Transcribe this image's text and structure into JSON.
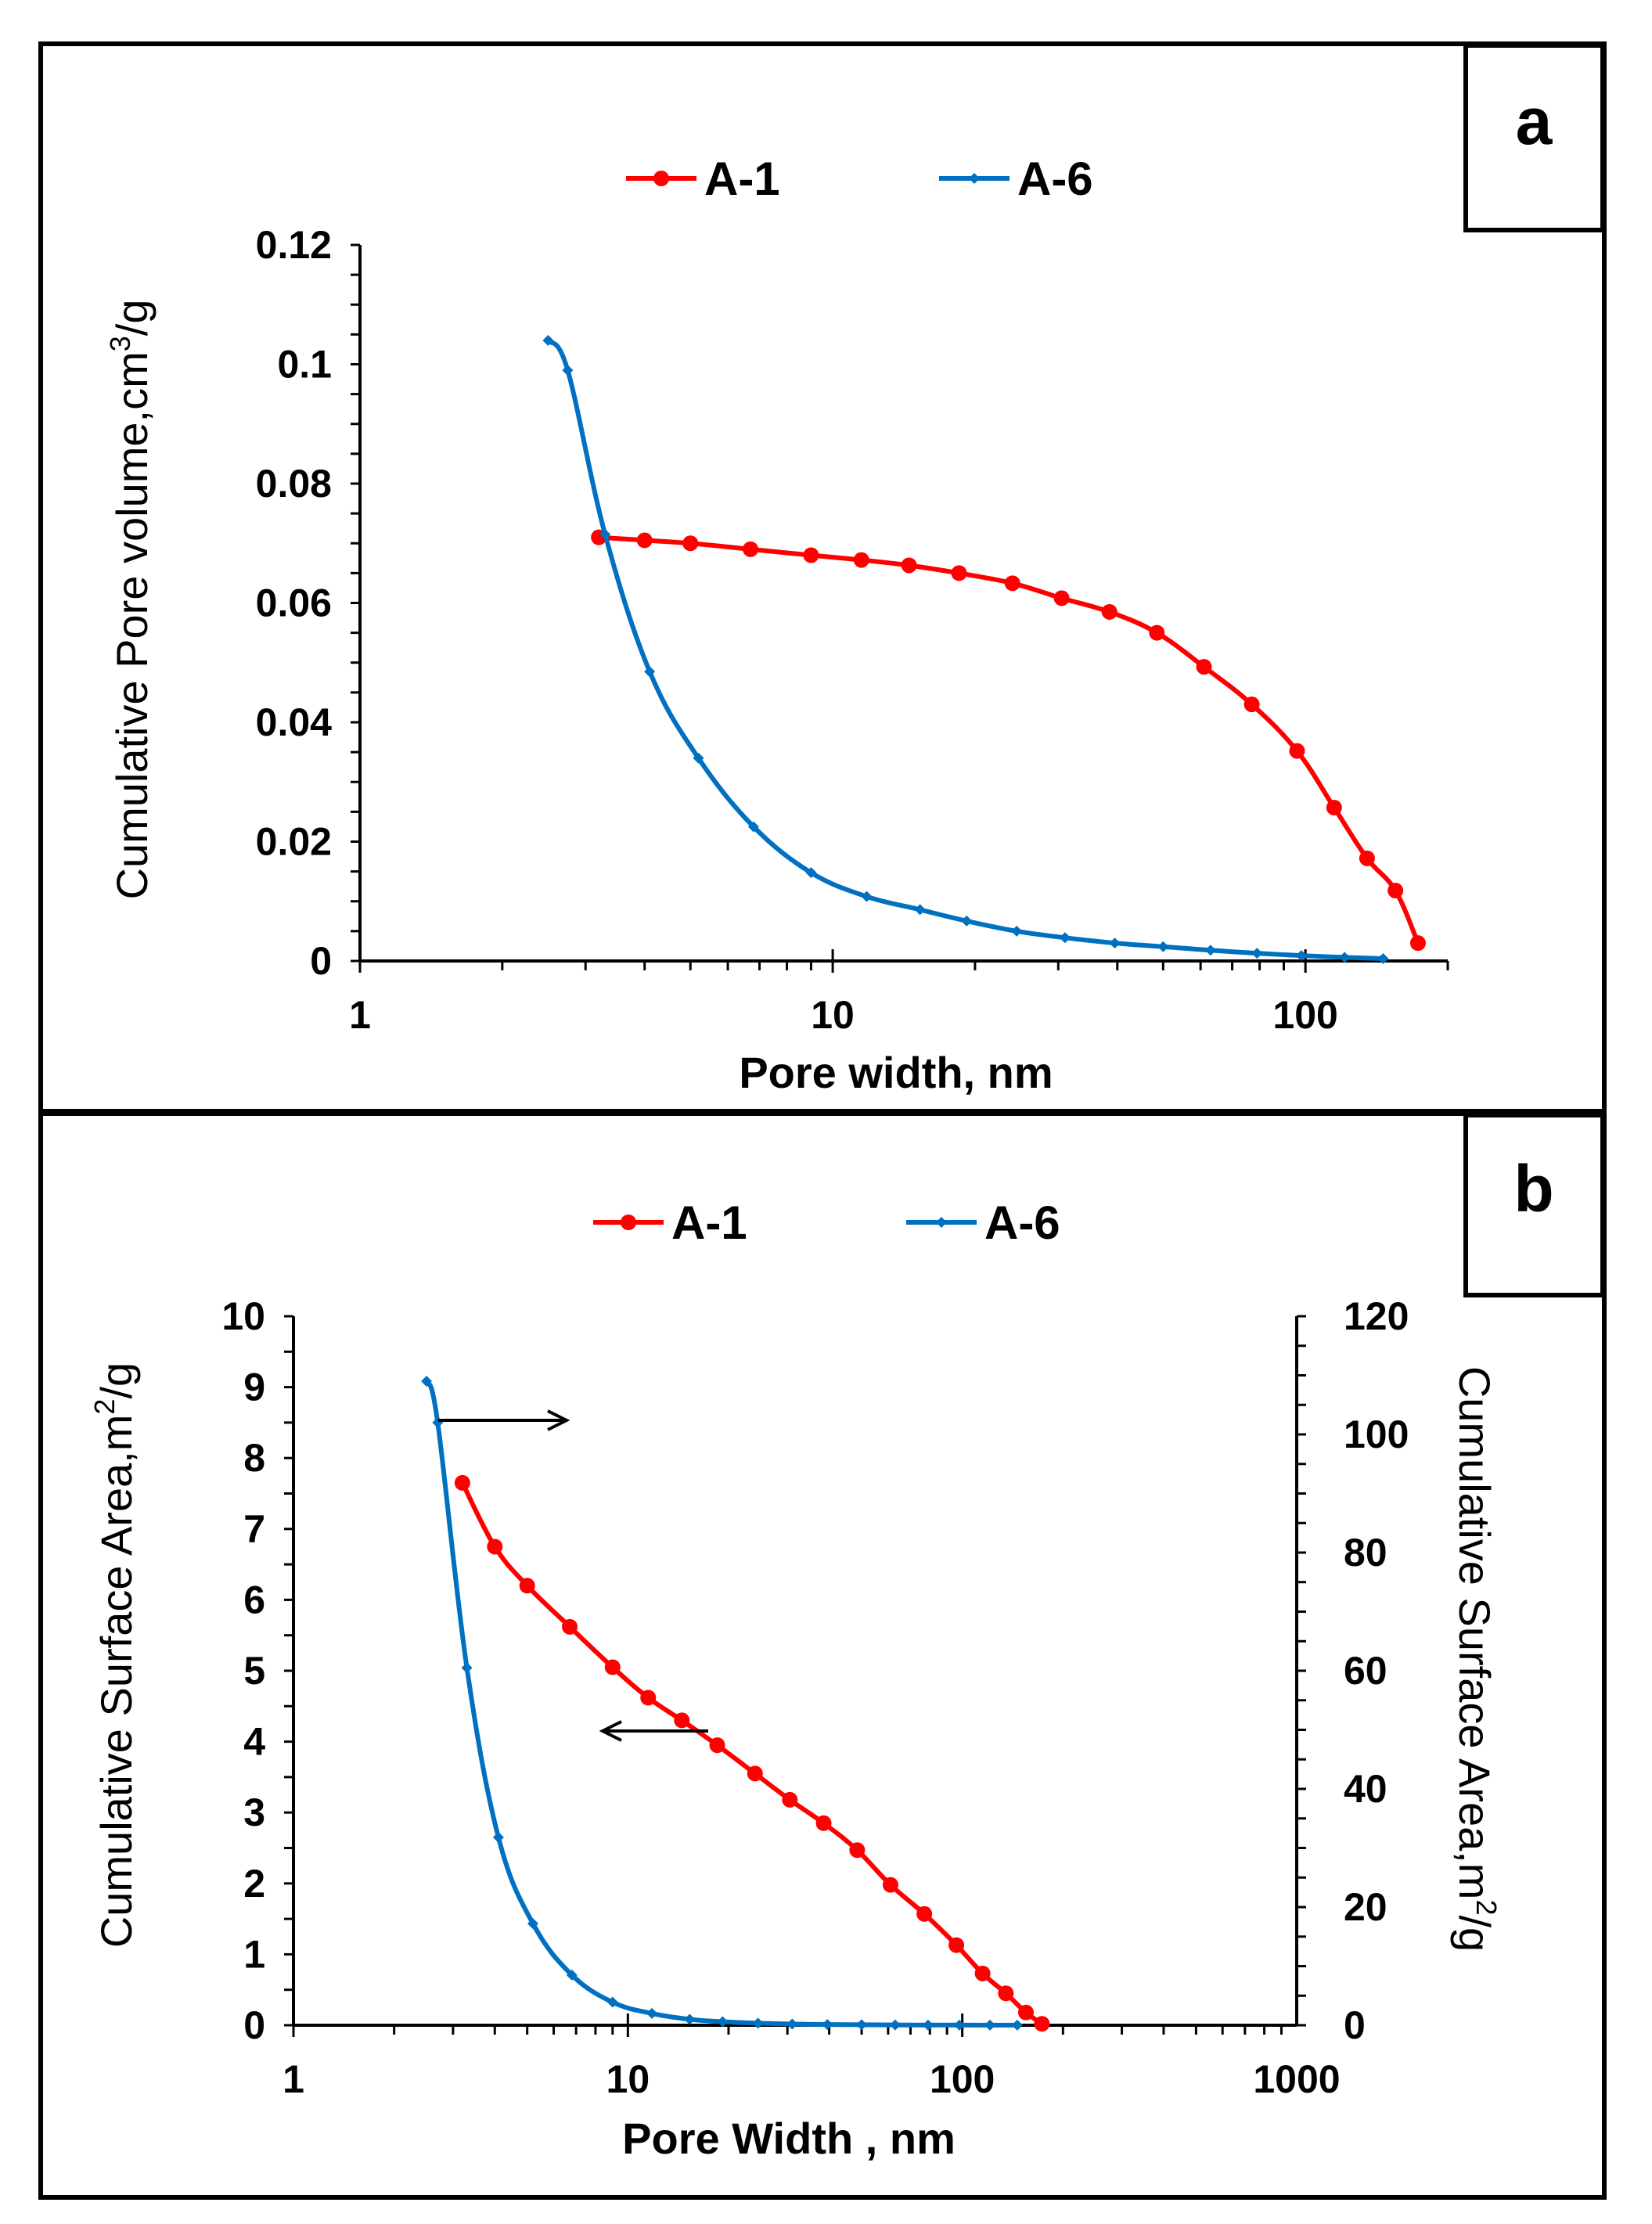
{
  "chart_data": [
    {
      "type": "line",
      "panel_label": "a",
      "xscale": "log",
      "xlim": [
        1,
        200
      ],
      "ylim": [
        0,
        0.12
      ],
      "xticks": [
        "1",
        "10",
        "100"
      ],
      "yticks": [
        "0",
        "0.02",
        "0.04",
        "0.06",
        "0.08",
        "0.1",
        "0.12"
      ],
      "xlabel": "Pore width, nm",
      "ylabel": "Cumulative Pore  volume,cm",
      "ylabel_sup": "3",
      "ylabel_tail": "/g",
      "legend_position": "top-center",
      "series": [
        {
          "name": "A-1",
          "color": "#ff0000",
          "marker": "circle",
          "x": [
            3.2,
            4,
            5,
            6.7,
            9,
            11.5,
            14.5,
            18.5,
            24,
            30.5,
            38.5,
            48.5,
            61,
            77,
            96,
            115,
            135,
            155,
            173
          ],
          "y": [
            0.071,
            0.0705,
            0.07,
            0.069,
            0.068,
            0.0672,
            0.0663,
            0.065,
            0.0633,
            0.0608,
            0.0585,
            0.055,
            0.0493,
            0.043,
            0.0352,
            0.0257,
            0.0172,
            0.0118,
            0.003
          ]
        },
        {
          "name": "A-6",
          "color": "#0070c0",
          "marker": "diamond",
          "x": [
            2.5,
            2.75,
            3.3,
            4.1,
            5.2,
            6.8,
            9,
            11.8,
            15.3,
            19.2,
            24.5,
            31,
            39.5,
            50,
            63,
            79,
            98,
            121,
            146
          ],
          "y": [
            0.104,
            0.099,
            0.0715,
            0.0485,
            0.034,
            0.0225,
            0.0148,
            0.0108,
            0.0086,
            0.0067,
            0.005,
            0.0039,
            0.003,
            0.0024,
            0.0018,
            0.0013,
            0.0009,
            0.0006,
            0.0004
          ]
        }
      ]
    },
    {
      "type": "line",
      "panel_label": "b",
      "xscale": "log",
      "xlim": [
        1,
        1000
      ],
      "ylim_left": [
        0,
        10
      ],
      "ylim_right": [
        0,
        120
      ],
      "xticks": [
        "1",
        "10",
        "100",
        "1000"
      ],
      "yticks_left": [
        "0",
        "1",
        "2",
        "3",
        "4",
        "5",
        "6",
        "7",
        "8",
        "9",
        "10"
      ],
      "yticks_right": [
        "0",
        "20",
        "40",
        "60",
        "80",
        "100",
        "120"
      ],
      "xlabel": "Pore Width , nm",
      "ylabel_left": "Cumulative Surface Area,m",
      "ylabel_left_sup": "2",
      "ylabel_left_tail": "/g",
      "ylabel_right": "Cumulative Surface Area,m",
      "ylabel_right_sup": "2",
      "ylabel_right_tail": "/g",
      "legend_position": "top-center",
      "series": [
        {
          "name": "A-1",
          "axis": "left",
          "color": "#ff0000",
          "marker": "circle",
          "x": [
            3.2,
            4,
            5,
            6.7,
            9,
            11.5,
            14.5,
            18.5,
            24,
            30.5,
            38.5,
            48.5,
            61,
            77,
            96,
            115,
            135,
            155,
            173
          ],
          "y": [
            7.65,
            6.75,
            6.2,
            5.62,
            5.05,
            4.62,
            4.3,
            3.95,
            3.55,
            3.18,
            2.85,
            2.47,
            1.98,
            1.57,
            1.13,
            0.73,
            0.45,
            0.18,
            0.02
          ]
        },
        {
          "name": "A-6",
          "axis": "right",
          "color": "#0070c0",
          "marker": "diamond",
          "x": [
            2.5,
            2.7,
            3.3,
            4.1,
            5.2,
            6.8,
            9,
            11.8,
            15.3,
            19.2,
            24.5,
            31,
            39.5,
            50,
            63,
            79,
            98,
            121,
            146
          ],
          "y": [
            109,
            102,
            60.5,
            31.8,
            17.2,
            8.5,
            3.9,
            2,
            1,
            0.6,
            0.35,
            0.2,
            0.12,
            0.08,
            0.05,
            0.03,
            0.02,
            0.01,
            0.01
          ]
        }
      ]
    }
  ]
}
